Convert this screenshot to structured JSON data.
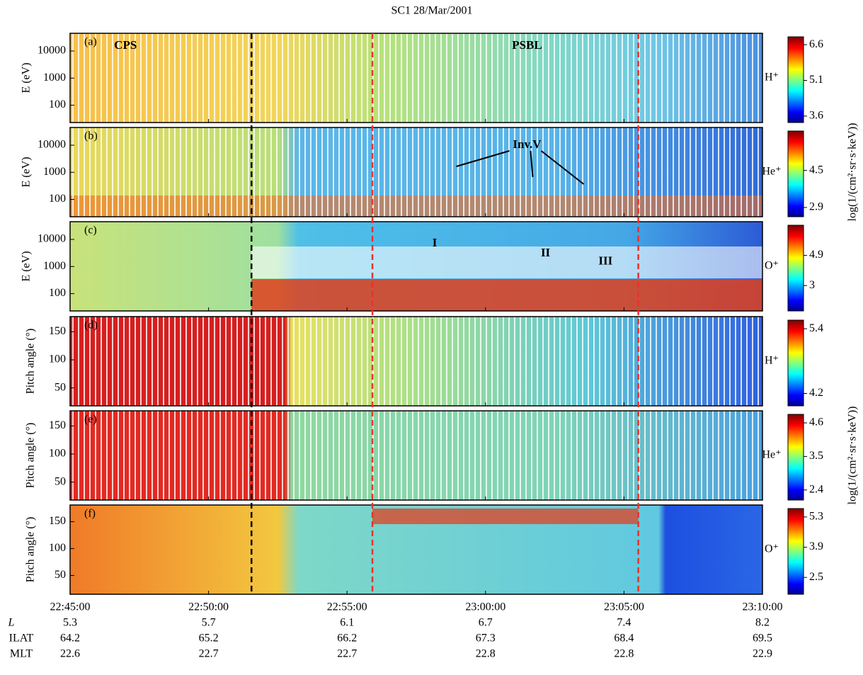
{
  "figure": {
    "title": "SC1 28/Mar/2001",
    "xlim": [
      "22:45:00",
      "23:10:00"
    ],
    "xticks": [
      "22:45:00",
      "22:50:00",
      "22:55:00",
      "23:00:00",
      "23:05:00",
      "23:10:00"
    ],
    "rows": [
      {
        "name": "L",
        "values": [
          "5.3",
          "5.7",
          "6.1",
          "6.7",
          "7.4",
          "8.2"
        ]
      },
      {
        "name": "ILAT",
        "values": [
          "64.2",
          "65.2",
          "66.2",
          "67.3",
          "68.4",
          "69.5"
        ]
      },
      {
        "name": "MLT",
        "values": [
          "22.6",
          "22.7",
          "22.7",
          "22.8",
          "22.8",
          "22.9"
        ]
      }
    ],
    "colorbar_label": "log(1/(cm²·sr·s·keV))",
    "boundaries": [
      {
        "time": "22:51:33",
        "color": "#000000"
      },
      {
        "time": "22:55:55",
        "color": "#e8322a"
      },
      {
        "time": "23:05:31",
        "color": "#e8322a"
      }
    ],
    "annotations": [
      {
        "text": "CPS",
        "panel": 0,
        "time": "22:47:00",
        "y": 15000
      },
      {
        "text": "PSBL",
        "panel": 0,
        "time": "23:01:30",
        "y": 15000
      },
      {
        "text": "Inv.V",
        "panel": 1,
        "time": "23:01:30",
        "y": 10000
      },
      {
        "text": "I",
        "panel": 2,
        "time": "22:58:10",
        "y": 7000
      },
      {
        "text": "II",
        "panel": 2,
        "time": "23:02:10",
        "y": 3000
      },
      {
        "text": "III",
        "panel": 2,
        "time": "23:04:20",
        "y": 1500
      }
    ]
  },
  "chart_data": [
    {
      "type": "heatmap",
      "label": "(a)",
      "ylabel": "E (eV)",
      "log": true,
      "ylim": [
        23,
        45000
      ],
      "yticks": [
        100,
        1000,
        10000
      ],
      "species": "H⁺",
      "clim": [
        3.33,
        6.93
      ],
      "cticks": [
        3.6,
        5.1,
        6.6
      ]
    },
    {
      "type": "heatmap",
      "label": "(b)",
      "ylabel": "E (eV)",
      "log": true,
      "ylim": [
        23,
        45000
      ],
      "yticks": [
        100,
        1000,
        10000
      ],
      "species": "He⁺",
      "clim": [
        2.5,
        6.2
      ],
      "cticks": [
        2.9,
        4.5
      ]
    },
    {
      "type": "heatmap",
      "label": "(c)",
      "ylabel": "E (eV)",
      "log": true,
      "ylim": [
        23,
        45000
      ],
      "yticks": [
        100,
        1000,
        10000
      ],
      "species": "O⁺",
      "clim": [
        1.4,
        6.8
      ],
      "cticks": [
        3.0,
        4.9
      ]
    },
    {
      "type": "heatmap",
      "label": "(d)",
      "ylabel": "Pitch angle (°)",
      "log": false,
      "ylim": [
        18,
        177
      ],
      "yticks": [
        50,
        100,
        150
      ],
      "species": "H⁺",
      "clim": [
        3.97,
        5.56
      ],
      "cticks": [
        4.2,
        5.4
      ]
    },
    {
      "type": "heatmap",
      "label": "(e)",
      "ylabel": "Pitch angle (°)",
      "log": false,
      "ylim": [
        18,
        177
      ],
      "yticks": [
        50,
        100,
        150
      ],
      "species": "He⁺",
      "clim": [
        2.07,
        4.88
      ],
      "cticks": [
        2.4,
        3.5,
        4.6
      ]
    },
    {
      "type": "heatmap",
      "label": "(f)",
      "ylabel": "Pitch angle (°)",
      "log": false,
      "ylim": [
        15,
        181
      ],
      "yticks": [
        50,
        100,
        150
      ],
      "species": "O⁺",
      "clim": [
        1.72,
        5.69
      ],
      "cticks": [
        2.5,
        3.9,
        5.3
      ]
    }
  ]
}
